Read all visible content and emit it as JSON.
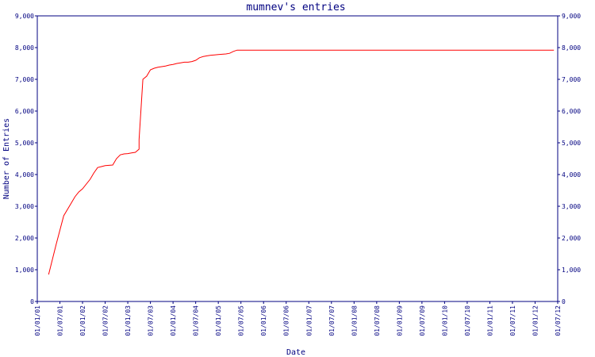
{
  "chart_data": {
    "type": "line",
    "title": "mumnev's entries",
    "xlabel": "Date",
    "ylabel": "Number of Entries",
    "ylim": [
      0,
      9000
    ],
    "y_ticks": [
      "0",
      "1,000",
      "2,000",
      "3,000",
      "4,000",
      "5,000",
      "6,000",
      "7,000",
      "8,000",
      "9,000"
    ],
    "x_ticks": [
      "01/01/01",
      "01/07/01",
      "01/01/02",
      "01/07/02",
      "01/01/03",
      "01/07/03",
      "01/01/04",
      "01/07/04",
      "01/01/05",
      "01/07/05",
      "01/01/06",
      "01/07/06",
      "01/01/07",
      "01/07/07",
      "01/01/08",
      "01/07/08",
      "01/01/09",
      "01/07/09",
      "01/01/10",
      "01/07/10",
      "01/01/11",
      "01/07/11",
      "01/01/12",
      "01/07/12"
    ],
    "grid": false,
    "right_axis": true,
    "colors": {
      "line": "#ff0000",
      "axis": "#000080",
      "text": "#000080"
    },
    "series": [
      {
        "x": [
          "01/04/01",
          "01/06/01",
          "01/08/01",
          "01/10/01",
          "01/11/01",
          "01/12/01",
          "01/01/02",
          "01/03/02",
          "01/04/02",
          "01/05/02",
          "01/06/02",
          "01/07/02",
          "01/09/02",
          "01/10/02",
          "01/11/02",
          "01/12/02",
          "01/01/03",
          "01/02/03",
          "01/03/03",
          "01/04/03",
          "01/04/03",
          "01/05/03",
          "01/06/03",
          "01/07/03",
          "01/08/03",
          "01/09/03",
          "01/10/03",
          "01/11/03",
          "01/12/03",
          "01/01/04",
          "01/02/04",
          "01/03/04",
          "01/04/04",
          "01/05/04",
          "01/06/04",
          "01/07/04",
          "01/08/04",
          "01/09/04",
          "01/10/04",
          "01/11/04",
          "01/12/04",
          "01/01/05",
          "01/02/05",
          "01/03/05",
          "01/04/05",
          "01/05/05",
          "01/06/05",
          "01/07/05",
          "01/08/05",
          "01/09/05",
          "01/10/05",
          "01/12/05",
          "01/06/06",
          "01/01/07",
          "01/01/08",
          "01/01/09",
          "01/01/10",
          "01/01/11",
          "01/01/12",
          "01/06/12"
        ],
        "y": [
          850,
          1800,
          2700,
          3100,
          3300,
          3450,
          3550,
          3850,
          4050,
          4220,
          4250,
          4280,
          4300,
          4500,
          4620,
          4650,
          4660,
          4680,
          4700,
          4800,
          5100,
          7000,
          7100,
          7300,
          7350,
          7380,
          7400,
          7420,
          7450,
          7470,
          7500,
          7520,
          7540,
          7540,
          7560,
          7600,
          7680,
          7720,
          7740,
          7760,
          7770,
          7780,
          7790,
          7800,
          7820,
          7880,
          7920,
          7920,
          7920,
          7920,
          7920,
          7920,
          7920,
          7920,
          7920,
          7920,
          7920,
          7920,
          7920,
          7920
        ]
      }
    ]
  }
}
